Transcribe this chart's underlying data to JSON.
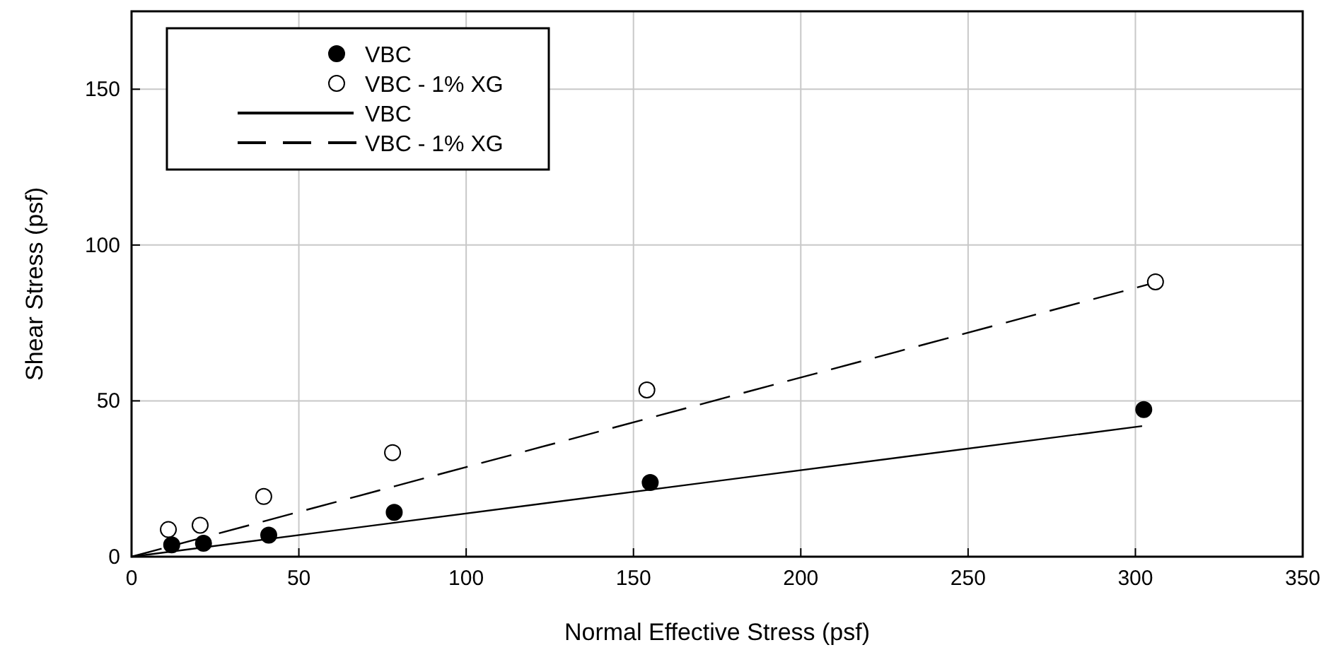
{
  "chart_data": {
    "type": "scatter",
    "xlabel": "Normal Effective Stress (psf)",
    "ylabel": "Shear Stress (psf)",
    "xlim": [
      0,
      350
    ],
    "ylim": [
      0,
      175
    ],
    "xticks": [
      0,
      50,
      100,
      150,
      200,
      250,
      300,
      350
    ],
    "yticks": [
      0,
      50,
      100,
      150
    ],
    "grid": true,
    "legend": "top left",
    "series": [
      {
        "name": "VBC",
        "marker": "circle",
        "color": "#000000",
        "x": [
          12,
          21.5,
          41,
          78.5,
          155,
          302.5
        ],
        "values": [
          3.8,
          4.3,
          6.9,
          14.2,
          23.8,
          47.2
        ]
      },
      {
        "name": "VBC - 1% XG",
        "marker": "circle",
        "color": "#ffffff",
        "x": [
          11,
          20.5,
          39.5,
          78,
          154,
          306
        ],
        "values": [
          8.7,
          10.1,
          19.3,
          33.4,
          53.5,
          88.2
        ]
      },
      {
        "name": "VBC",
        "type": "line",
        "line_style": "solid",
        "color": "#000000",
        "x": [
          0,
          302
        ],
        "values": [
          0,
          41.9
        ]
      },
      {
        "name": "VBC - 1% XG",
        "type": "line",
        "line_style": "dashed",
        "color": "#000000",
        "x": [
          0,
          304
        ],
        "values": [
          0,
          87.4
        ]
      }
    ]
  }
}
